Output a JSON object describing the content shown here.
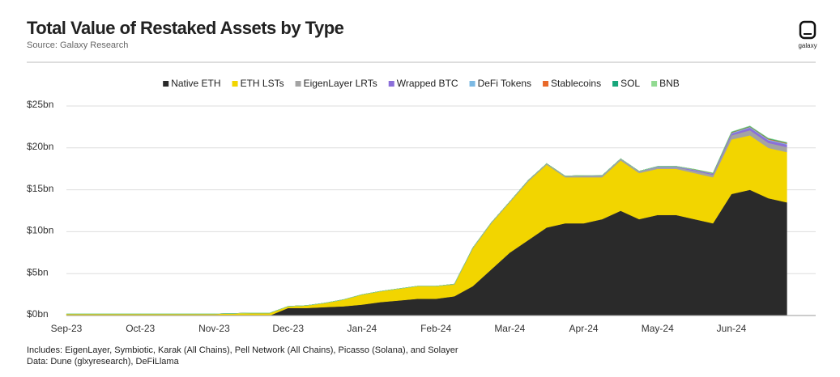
{
  "title": "Total Value of Restaked Assets by Type",
  "subtitle": "Source: Galaxy Research",
  "logo": "galaxy",
  "notes": [
    "Includes: EigenLayer, Symbiotic, Karak (All Chains), Pell Network (All Chains), Picasso (Solana), and Solayer",
    "Data: Dune (glxyresearch), DeFiLlama"
  ],
  "chart_data": {
    "type": "stacked-area",
    "categories": [
      "Sep-23",
      null,
      null,
      null,
      "Oct-23",
      null,
      null,
      null,
      "Nov-23",
      null,
      null,
      null,
      "Dec-23",
      null,
      null,
      null,
      "Jan-24",
      null,
      null,
      null,
      "Feb-24",
      null,
      null,
      null,
      "Mar-24",
      null,
      null,
      null,
      "Apr-24",
      null,
      null,
      null,
      "May-24",
      null,
      null,
      null,
      "Jun-24",
      null,
      null,
      null
    ],
    "ylim": [
      0,
      25
    ],
    "yticks": [
      {
        "value": 0,
        "label": "$0bn"
      },
      {
        "value": 5,
        "label": "$5bn"
      },
      {
        "value": 10,
        "label": "$10bn"
      },
      {
        "value": 15,
        "label": "$15bn"
      },
      {
        "value": 20,
        "label": "$20bn"
      },
      {
        "value": 25,
        "label": "$25bn"
      }
    ],
    "grid": true,
    "legend": "top",
    "series": [
      {
        "name": "Native ETH",
        "color": "#2a2a2a",
        "values": [
          0,
          0,
          0,
          0,
          0,
          0,
          0,
          0,
          0,
          0,
          0,
          0,
          0.9,
          0.9,
          1.0,
          1.1,
          1.3,
          1.6,
          1.8,
          2.0,
          2.0,
          2.3,
          3.5,
          5.5,
          7.5,
          9.0,
          10.5,
          11.0,
          11.0,
          11.5,
          12.5,
          11.5,
          12.0,
          12.0,
          11.5,
          11.0,
          14.5,
          15.0,
          14.0,
          13.5
        ]
      },
      {
        "name": "ETH LSTs",
        "color": "#f2d500",
        "values": [
          0.2,
          0.2,
          0.2,
          0.2,
          0.2,
          0.2,
          0.2,
          0.2,
          0.2,
          0.25,
          0.3,
          0.3,
          0.2,
          0.3,
          0.5,
          0.8,
          1.2,
          1.3,
          1.4,
          1.5,
          1.5,
          1.4,
          4.5,
          5.5,
          6.0,
          7.0,
          7.5,
          5.5,
          5.5,
          5.0,
          6.0,
          5.5,
          5.5,
          5.5,
          5.5,
          5.5,
          6.5,
          6.5,
          6.0,
          6.0
        ]
      },
      {
        "name": "EigenLayer LRTs",
        "color": "#a3a3a3",
        "values": [
          0,
          0,
          0,
          0,
          0,
          0,
          0,
          0,
          0,
          0,
          0,
          0,
          0,
          0,
          0,
          0,
          0,
          0,
          0,
          0,
          0,
          0.05,
          0.1,
          0.1,
          0.1,
          0.15,
          0.15,
          0.15,
          0.2,
          0.2,
          0.2,
          0.2,
          0.2,
          0.2,
          0.25,
          0.3,
          0.5,
          0.6,
          0.6,
          0.6
        ]
      },
      {
        "name": "Wrapped BTC",
        "color": "#8b6fd9",
        "values": [
          0,
          0,
          0,
          0,
          0,
          0,
          0,
          0,
          0,
          0,
          0,
          0,
          0,
          0,
          0,
          0,
          0,
          0,
          0,
          0,
          0,
          0,
          0,
          0,
          0,
          0,
          0,
          0,
          0,
          0,
          0,
          0,
          0.05,
          0.05,
          0.1,
          0.1,
          0.2,
          0.3,
          0.3,
          0.3
        ]
      },
      {
        "name": "DeFi Tokens",
        "color": "#7cb9e3",
        "values": [
          0,
          0,
          0,
          0,
          0,
          0,
          0,
          0,
          0,
          0,
          0,
          0,
          0,
          0,
          0,
          0,
          0,
          0,
          0,
          0,
          0,
          0,
          0,
          0,
          0,
          0,
          0,
          0,
          0.02,
          0.03,
          0.03,
          0.03,
          0.05,
          0.05,
          0.05,
          0.05,
          0.1,
          0.1,
          0.1,
          0.1
        ]
      },
      {
        "name": "Stablecoins",
        "color": "#e8692a",
        "values": [
          0,
          0,
          0,
          0,
          0,
          0,
          0,
          0,
          0,
          0,
          0,
          0,
          0,
          0,
          0,
          0,
          0,
          0,
          0,
          0,
          0,
          0,
          0,
          0,
          0,
          0,
          0,
          0,
          0,
          0,
          0,
          0,
          0,
          0.02,
          0.03,
          0.03,
          0.05,
          0.05,
          0.08,
          0.08
        ]
      },
      {
        "name": "SOL",
        "color": "#17a67b",
        "values": [
          0,
          0,
          0,
          0,
          0,
          0,
          0,
          0,
          0,
          0,
          0,
          0,
          0,
          0,
          0,
          0,
          0,
          0,
          0,
          0,
          0,
          0,
          0,
          0,
          0,
          0,
          0,
          0,
          0,
          0,
          0,
          0,
          0,
          0,
          0.02,
          0.03,
          0.05,
          0.05,
          0.06,
          0.06
        ]
      },
      {
        "name": "BNB",
        "color": "#92da92",
        "values": [
          0,
          0,
          0,
          0,
          0,
          0,
          0,
          0,
          0,
          0,
          0,
          0,
          0,
          0,
          0,
          0,
          0,
          0,
          0,
          0,
          0,
          0,
          0,
          0,
          0,
          0,
          0,
          0,
          0,
          0,
          0,
          0,
          0,
          0,
          0,
          0.01,
          0.02,
          0.03,
          0.03,
          0.03
        ]
      }
    ]
  }
}
